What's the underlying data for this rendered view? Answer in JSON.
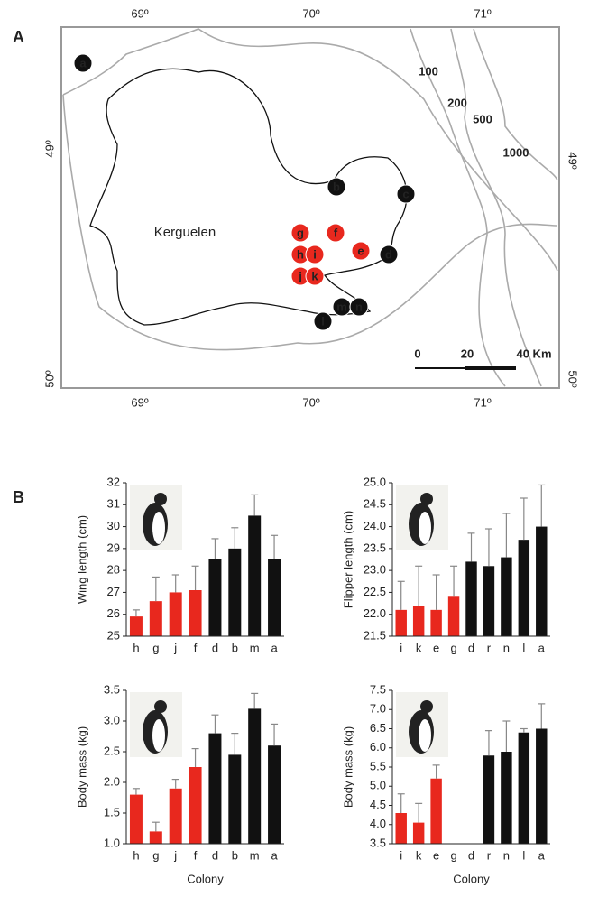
{
  "panel_labels": [
    "A",
    "B"
  ],
  "map": {
    "top_longitudes": [
      "69º",
      "70º",
      "71º"
    ],
    "bottom_longitudes": [
      "69º",
      "70º",
      "71º"
    ],
    "left_latitudes": [
      "49º",
      "50º"
    ],
    "right_latitudes": [
      "49º",
      "50º"
    ],
    "island_label": "Kerguelen",
    "depth_contours": [
      "100",
      "200",
      "500",
      "1000"
    ],
    "scale_labels": [
      "0",
      "20",
      "40 Km"
    ],
    "colonies": [
      {
        "label": "a",
        "color": "#111111"
      },
      {
        "label": "b",
        "color": "#111111"
      },
      {
        "label": "c",
        "color": "#111111"
      },
      {
        "label": "d",
        "color": "#111111"
      },
      {
        "label": "e",
        "color": "#e8281e"
      },
      {
        "label": "f",
        "color": "#e8281e"
      },
      {
        "label": "g",
        "color": "#e8281e"
      },
      {
        "label": "h",
        "color": "#e8281e"
      },
      {
        "label": "i",
        "color": "#e8281e"
      },
      {
        "label": "j",
        "color": "#e8281e"
      },
      {
        "label": "k",
        "color": "#e8281e"
      },
      {
        "label": "l",
        "color": "#111111"
      },
      {
        "label": "m",
        "color": "#111111"
      },
      {
        "label": "n",
        "color": "#111111"
      }
    ]
  },
  "chart_data": [
    {
      "type": "bar",
      "y_label": "Wing length (cm)",
      "categories": [
        "h",
        "g",
        "j",
        "f",
        "d",
        "b",
        "m",
        "a"
      ],
      "values": [
        25.9,
        26.6,
        27.0,
        27.1,
        28.5,
        29.0,
        30.5,
        28.5
      ],
      "errors": [
        0.3,
        1.1,
        0.8,
        1.1,
        0.95,
        0.95,
        0.95,
        1.1
      ],
      "colors": [
        "#e8281e",
        "#e8281e",
        "#e8281e",
        "#e8281e",
        "#111111",
        "#111111",
        "#111111",
        "#111111"
      ],
      "ylim": [
        25,
        32
      ],
      "yticks": [
        25,
        26,
        27,
        28,
        29,
        30,
        31,
        32
      ]
    },
    {
      "type": "bar",
      "y_label": "Flipper length (cm)",
      "categories": [
        "i",
        "k",
        "e",
        "g",
        "d",
        "r",
        "n",
        "l",
        "a"
      ],
      "values": [
        22.1,
        22.2,
        22.1,
        22.4,
        23.2,
        23.1,
        23.3,
        23.7,
        24.0
      ],
      "errors": [
        0.65,
        0.9,
        0.8,
        0.7,
        0.65,
        0.85,
        1.0,
        0.95,
        0.95
      ],
      "colors": [
        "#e8281e",
        "#e8281e",
        "#e8281e",
        "#e8281e",
        "#111111",
        "#111111",
        "#111111",
        "#111111",
        "#111111"
      ],
      "ylim": [
        21.5,
        25
      ],
      "yticks": [
        21.5,
        {
          "value": 22,
          "label": "22.0"
        },
        22.5,
        {
          "value": 23,
          "label": "23.0"
        },
        23.5,
        {
          "value": 24,
          "label": "24.0"
        },
        24.5,
        {
          "value": 25,
          "label": "25.0"
        }
      ]
    },
    {
      "type": "bar",
      "y_label": "Body mass (kg)",
      "x_label": "Colony",
      "categories": [
        "h",
        "g",
        "j",
        "f",
        "d",
        "b",
        "m",
        "a"
      ],
      "values": [
        1.8,
        1.2,
        1.9,
        2.25,
        2.8,
        2.45,
        3.2,
        2.6
      ],
      "errors": [
        0.1,
        0.15,
        0.15,
        0.3,
        0.3,
        0.35,
        0.25,
        0.35
      ],
      "colors": [
        "#e8281e",
        "#e8281e",
        "#e8281e",
        "#e8281e",
        "#111111",
        "#111111",
        "#111111",
        "#111111"
      ],
      "ylim": [
        1,
        3.5
      ],
      "yticks": [
        {
          "value": 1,
          "label": "1.0"
        },
        1.5,
        {
          "value": 2,
          "label": "2.0"
        },
        2.5,
        {
          "value": 3,
          "label": "3.0"
        },
        3.5
      ]
    },
    {
      "type": "bar",
      "y_label": "Body mass (kg)",
      "x_label": "Colony",
      "categories": [
        "i",
        "k",
        "e",
        "g",
        "d",
        "r",
        "n",
        "l",
        "a"
      ],
      "values": [
        4.3,
        4.05,
        5.2,
        null,
        null,
        5.8,
        5.9,
        6.4,
        6.5
      ],
      "errors": [
        0.5,
        0.5,
        0.35,
        null,
        null,
        0.65,
        0.8,
        0.1,
        0.65
      ],
      "colors": [
        "#e8281e",
        "#e8281e",
        "#e8281e",
        "#e8281e",
        "#111111",
        "#111111",
        "#111111",
        "#111111",
        "#111111"
      ],
      "ylim": [
        3.5,
        7.5
      ],
      "yticks": [
        3.5,
        {
          "value": 4,
          "label": "4.0"
        },
        4.5,
        {
          "value": 5,
          "label": "5.0"
        },
        5.5,
        {
          "value": 6,
          "label": "6.0"
        },
        6.5,
        {
          "value": 7,
          "label": "7.0"
        },
        7.5
      ]
    }
  ]
}
